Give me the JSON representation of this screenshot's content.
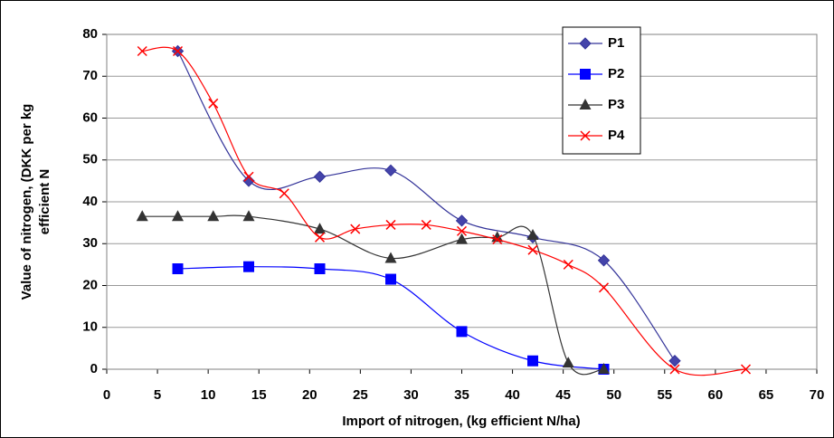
{
  "chart_data": {
    "type": "scatter",
    "xlabel": "Import of nitrogen, (kg efficient N/ha)",
    "ylabel": [
      "Value of nitrogen, (DKK per kg",
      "efficient N"
    ],
    "xlim": [
      0,
      70
    ],
    "xticks": [
      0,
      5,
      10,
      15,
      20,
      25,
      30,
      35,
      40,
      45,
      50,
      55,
      60,
      65,
      70
    ],
    "ylim": [
      0,
      80
    ],
    "yticks": [
      0,
      10,
      20,
      30,
      40,
      50,
      60,
      70,
      80
    ],
    "grid": true,
    "smooth": true,
    "legend": "top-right",
    "series": [
      {
        "name": "P1",
        "color": "#333399",
        "marker": "diamond",
        "x": [
          7,
          14,
          21,
          28,
          35,
          42,
          49,
          56
        ],
        "values": [
          76,
          45,
          46,
          47.5,
          35.5,
          31.5,
          26,
          2
        ]
      },
      {
        "name": "P2",
        "color": "#0000ff",
        "marker": "square",
        "x": [
          7,
          14,
          21,
          28,
          35,
          42,
          49
        ],
        "values": [
          24,
          24.5,
          24,
          21.5,
          9,
          2,
          0
        ]
      },
      {
        "name": "P3",
        "color": "#333333",
        "marker": "triangle",
        "x": [
          3.5,
          7,
          10.5,
          14,
          21,
          28,
          35,
          38.5,
          42,
          45.5,
          49
        ],
        "values": [
          36.5,
          36.5,
          36.5,
          36.5,
          33.5,
          26.5,
          31,
          31.5,
          32,
          1.5,
          0
        ]
      },
      {
        "name": "P4",
        "color": "#ff0000",
        "marker": "x",
        "x": [
          3.5,
          7,
          10.5,
          14,
          17.5,
          21,
          24.5,
          28,
          31.5,
          35,
          38.5,
          42,
          45.5,
          49,
          56,
          63
        ],
        "values": [
          76,
          76,
          63.5,
          46,
          42,
          31.5,
          33.5,
          34.5,
          34.5,
          33,
          31,
          28.5,
          25,
          19.5,
          0,
          0
        ]
      }
    ]
  }
}
